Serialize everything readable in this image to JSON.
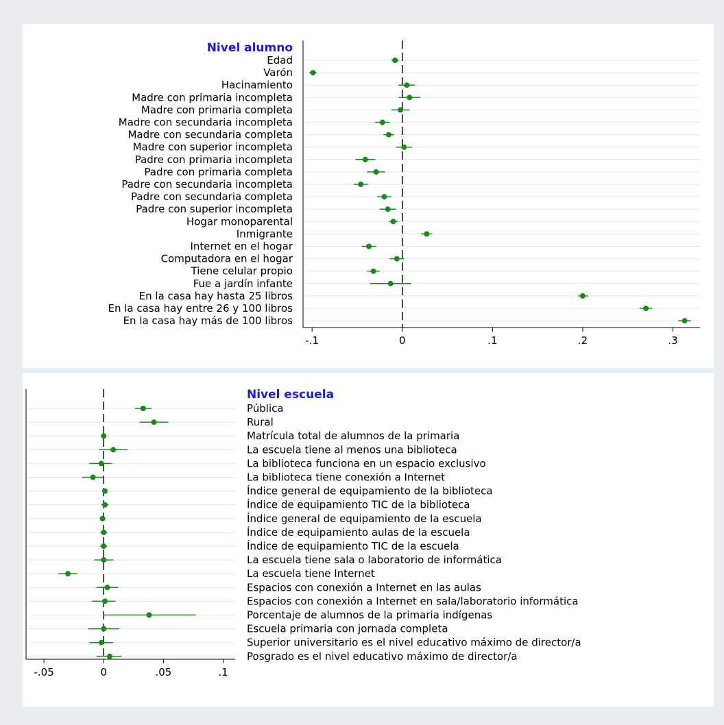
{
  "colors": {
    "marker": "#1a8a1a",
    "title": "#1a1ae6",
    "grid": "#dde8ec",
    "background": "#e8eef1"
  },
  "chart_data": [
    {
      "type": "scatter",
      "subtype": "coefficient-plot",
      "group_title": "Nivel alumno",
      "xlim": [
        -0.11,
        0.33
      ],
      "xticks": [
        -0.1,
        0,
        0.1,
        0.2,
        0.3
      ],
      "xtick_labels": [
        "-.1",
        "0",
        ".1",
        ".2",
        ".3"
      ],
      "reference_line": 0,
      "grid": true,
      "categories": [
        "Edad",
        "Varón",
        "Hacinamiento",
        "Madre con primaria incompleta",
        "Madre con primaria completa",
        "Madre con secundaria incompleta",
        "Madre con secundaria completa",
        "Madre con superior incompleta",
        "Padre con primaria incompleta",
        "Padre con primaria completa",
        "Padre con secundaria incompleta",
        "Padre con secundaria completa",
        "Padre con superior incompleta",
        "Hogar monoparental",
        "Inmigrante",
        "Internet en el hogar",
        "Computadora en el hogar",
        "Tiene celular propio",
        "Fue a jardín infante",
        "En la casa hay hasta 25 libros",
        "En la casa hay entre 26 y 100 libros",
        "En la casa hay más de 100 libros"
      ],
      "estimates": [
        -0.008,
        -0.099,
        0.005,
        0.008,
        -0.002,
        -0.022,
        -0.015,
        0.002,
        -0.041,
        -0.029,
        -0.046,
        -0.02,
        -0.016,
        -0.01,
        0.027,
        -0.037,
        -0.006,
        -0.032,
        -0.013,
        0.2,
        0.27,
        0.313
      ],
      "ci_low": [
        -0.012,
        -0.103,
        -0.004,
        -0.004,
        -0.012,
        -0.03,
        -0.021,
        -0.007,
        -0.052,
        -0.039,
        -0.054,
        -0.028,
        -0.025,
        -0.015,
        0.021,
        -0.045,
        -0.014,
        -0.039,
        -0.036,
        0.195,
        0.263,
        0.306
      ],
      "ci_high": [
        -0.004,
        -0.095,
        0.014,
        0.02,
        0.008,
        -0.014,
        -0.009,
        0.011,
        -0.03,
        -0.019,
        -0.038,
        -0.012,
        -0.007,
        -0.005,
        0.033,
        -0.029,
        0.002,
        -0.025,
        0.01,
        0.206,
        0.277,
        0.32
      ]
    },
    {
      "type": "scatter",
      "subtype": "coefficient-plot",
      "group_title": "Nivel escuela",
      "xlim": [
        -0.065,
        0.11
      ],
      "xticks": [
        -0.05,
        0,
        0.05,
        0.1
      ],
      "xtick_labels": [
        "-.05",
        "0",
        ".05",
        ".1"
      ],
      "reference_line": 0,
      "grid": true,
      "categories": [
        "Pública",
        "Rural",
        "Matrícula total de alumnos de la primaria",
        "La escuela tiene al menos una biblioteca",
        "La biblioteca funciona en un espacio exclusivo",
        "La biblioteca tiene conexión a Internet",
        "Índice general de equipamiento de la biblioteca",
        "Índice de equipamiento TIC de la biblioteca",
        "Índice general de equipamiento de la escuela",
        "Índice de equipamiento aulas de la escuela",
        "Índice de equipamiento TIC de la escuela",
        "La escuela tiene sala o laboratorio de informática",
        "La escuela tiene Internet",
        "Espacios con conexión a Internet en las aulas",
        "Espacios con conexión a Internet en sala/laboratorio informática",
        "Porcentaje de alumnos de la primaria indígenas",
        "Escuela primaria con jornada completa",
        "Superior universitario es el nivel educativo máximo de director/a",
        "Posgrado es el nivel educativo máximo de director/a"
      ],
      "estimates": [
        0.033,
        0.042,
        0.0,
        0.008,
        -0.002,
        -0.009,
        0.001,
        0.001,
        -0.001,
        0.0,
        0.0,
        0.0,
        -0.03,
        0.003,
        0.001,
        0.038,
        0.0,
        -0.002,
        0.005
      ],
      "ci_low": [
        0.026,
        0.03,
        -0.001,
        -0.004,
        -0.012,
        -0.018,
        -0.001,
        -0.002,
        -0.003,
        -0.003,
        -0.003,
        -0.008,
        -0.038,
        -0.006,
        -0.01,
        0.0,
        -0.013,
        -0.012,
        -0.006
      ],
      "ci_high": [
        0.04,
        0.054,
        0.001,
        0.02,
        0.007,
        0.0,
        0.003,
        0.004,
        0.001,
        0.003,
        0.003,
        0.008,
        -0.022,
        0.012,
        0.01,
        0.077,
        0.013,
        0.008,
        0.015
      ]
    }
  ]
}
